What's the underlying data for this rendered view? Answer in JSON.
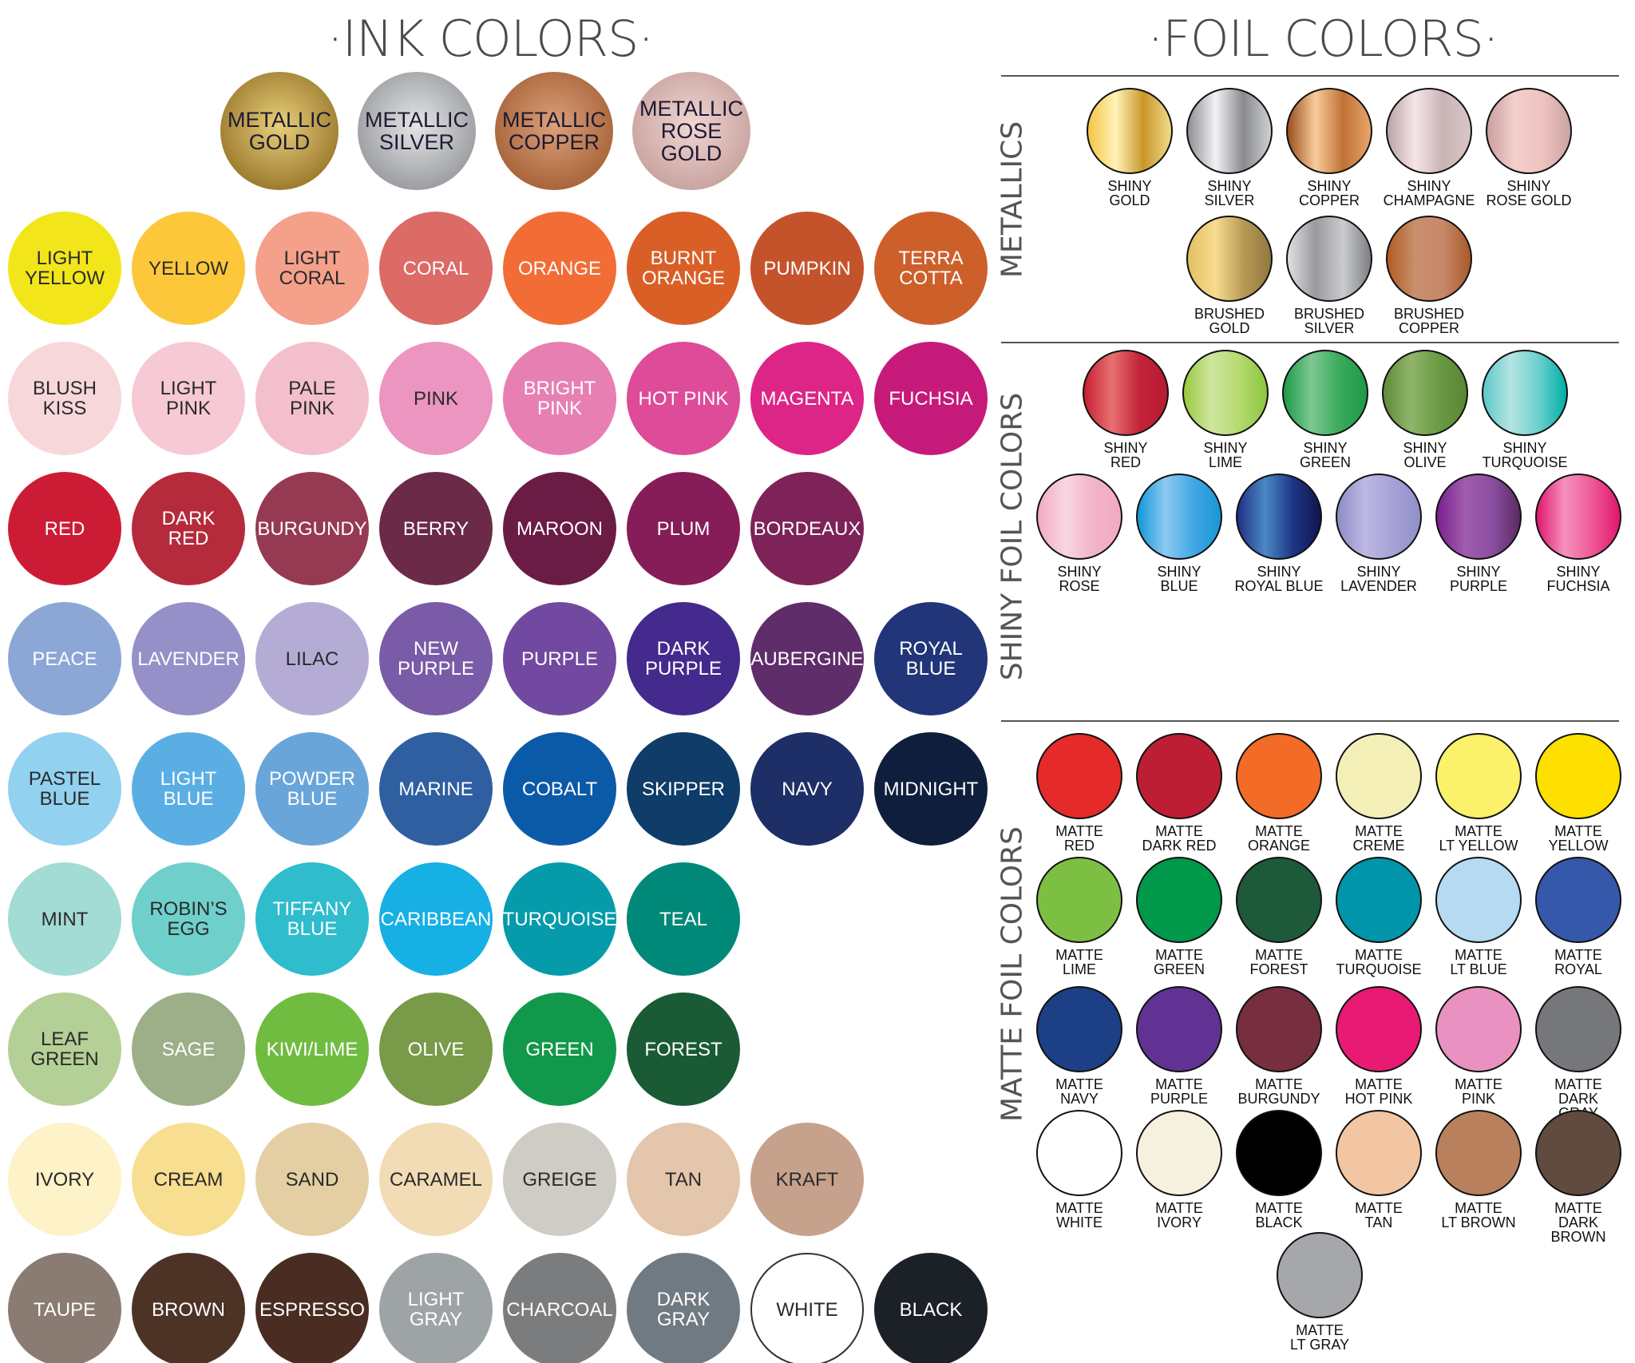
{
  "ink": {
    "title": "·INK COLORS·",
    "metallics": [
      {
        "label": "METALLIC\nGOLD",
        "colors": [
          "#9c7a2e",
          "#e8cf7a",
          "#b79245"
        ]
      },
      {
        "label": "METALLIC\nSILVER",
        "colors": [
          "#9a9ca0",
          "#e4e5e7",
          "#a7a9ad"
        ]
      },
      {
        "label": "METALLIC\nCOPPER",
        "colors": [
          "#a8643a",
          "#dca07a",
          "#b06b40"
        ]
      },
      {
        "label": "METALLIC\nROSE\nGOLD",
        "colors": [
          "#c9a3a0",
          "#f0d6d2",
          "#c79d9a"
        ]
      }
    ],
    "rows": [
      [
        {
          "label": "LIGHT\nYELLOW",
          "color": "#f2e61a"
        },
        {
          "label": "YELLOW",
          "color": "#fcc73a"
        },
        {
          "label": "LIGHT\nCORAL",
          "color": "#f4a08a"
        },
        {
          "label": "CORAL",
          "color": "#dc6a65"
        },
        {
          "label": "ORANGE",
          "color": "#f26c36"
        },
        {
          "label": "BURNT\nORANGE",
          "color": "#d95f27"
        },
        {
          "label": "PUMPKIN",
          "color": "#c4532c"
        },
        {
          "label": "TERRA\nCOTTA",
          "color": "#cd5f2a"
        }
      ],
      [
        {
          "label": "BLUSH\nKISS",
          "color": "#f8d7db"
        },
        {
          "label": "LIGHT\nPINK",
          "color": "#f7c9d4"
        },
        {
          "label": "PALE\nPINK",
          "color": "#f4bfcc"
        },
        {
          "label": "PINK",
          "color": "#eb95c0"
        },
        {
          "label": "BRIGHT\nPINK",
          "color": "#e77fb3"
        },
        {
          "label": "HOT PINK",
          "color": "#de4b98"
        },
        {
          "label": "MAGENTA",
          "color": "#dc2586"
        },
        {
          "label": "FUCHSIA",
          "color": "#c61a7a"
        }
      ],
      [
        {
          "label": "RED",
          "color": "#cc1c35"
        },
        {
          "label": "DARK\nRED",
          "color": "#b52b3b"
        },
        {
          "label": "BURGUNDY",
          "color": "#963a54"
        },
        {
          "label": "BERRY",
          "color": "#6b2a48"
        },
        {
          "label": "MAROON",
          "color": "#6a1c45"
        },
        {
          "label": "PLUM",
          "color": "#861d58"
        },
        {
          "label": "BORDEAUX",
          "color": "#7d2358"
        }
      ],
      [
        {
          "label": "PEACE",
          "color": "#8ca6d6"
        },
        {
          "label": "LAVENDER",
          "color": "#9590c8"
        },
        {
          "label": "LILAC",
          "color": "#b5acd6"
        },
        {
          "label": "NEW\nPURPLE",
          "color": "#7a5ba8"
        },
        {
          "label": "PURPLE",
          "color": "#7249a0"
        },
        {
          "label": "DARK\nPURPLE",
          "color": "#432a8c"
        },
        {
          "label": "AUBERGINE",
          "color": "#5f2d6a"
        },
        {
          "label": "ROYAL\nBLUE",
          "color": "#213578"
        }
      ],
      [
        {
          "label": "PASTEL\nBLUE",
          "color": "#92d1ef"
        },
        {
          "label": "LIGHT\nBLUE",
          "color": "#5aaee4"
        },
        {
          "label": "POWDER\nBLUE",
          "color": "#6aa5da"
        },
        {
          "label": "MARINE",
          "color": "#2f5fa0"
        },
        {
          "label": "COBALT",
          "color": "#0b5aa8"
        },
        {
          "label": "SKIPPER",
          "color": "#0f3c68"
        },
        {
          "label": "NAVY",
          "color": "#1e2e66"
        },
        {
          "label": "MIDNIGHT",
          "color": "#0f1e3d"
        }
      ],
      [
        {
          "label": "MINT",
          "color": "#a3dbd5"
        },
        {
          "label": "ROBIN’S\nEGG",
          "color": "#6fcfcb"
        },
        {
          "label": "TIFFANY\nBLUE",
          "color": "#2fbccd"
        },
        {
          "label": "CARIBBEAN",
          "color": "#17b0e4"
        },
        {
          "label": "TURQUOISE",
          "color": "#059bab"
        },
        {
          "label": "TEAL",
          "color": "#008878"
        }
      ],
      [
        {
          "label": "LEAF\nGREEN",
          "color": "#b5d096"
        },
        {
          "label": "SAGE",
          "color": "#9caf88"
        },
        {
          "label": "KIWI/LIME",
          "color": "#70bc40"
        },
        {
          "label": "OLIVE",
          "color": "#799a48"
        },
        {
          "label": "GREEN",
          "color": "#12984a"
        },
        {
          "label": "FOREST",
          "color": "#1a5a35"
        }
      ],
      [
        {
          "label": "IVORY",
          "color": "#fdf2c8"
        },
        {
          "label": "CREAM",
          "color": "#f8de90"
        },
        {
          "label": "SAND",
          "color": "#e4cfa4"
        },
        {
          "label": "CARAMEL",
          "color": "#f2dcb5"
        },
        {
          "label": "GREIGE",
          "color": "#cfccc5"
        },
        {
          "label": "TAN",
          "color": "#e3c6ab"
        },
        {
          "label": "KRAFT",
          "color": "#c6a28c"
        }
      ],
      [
        {
          "label": "TAUPE",
          "color": "#8a7c72"
        },
        {
          "label": "BROWN",
          "color": "#4d3326"
        },
        {
          "label": "ESPRESSO",
          "color": "#4a2d22"
        },
        {
          "label": "LIGHT\nGRAY",
          "color": "#9ea4a6"
        },
        {
          "label": "CHARCOAL",
          "color": "#7a7c7e"
        },
        {
          "label": "DARK\nGRAY",
          "color": "#707a82"
        },
        {
          "label": "WHITE",
          "color": "#ffffff"
        },
        {
          "label": "BLACK",
          "color": "#1c2128"
        }
      ]
    ]
  },
  "foil": {
    "title": "·FOIL COLORS·",
    "sections": [
      {
        "heading": "METALLICS",
        "rows": [
          [
            {
              "label": "SHINY\nGOLD",
              "colors": [
                "#f5c542",
                "#fff3b8",
                "#c9962a",
                "#f0dc8a"
              ]
            },
            {
              "label": "SHINY\nSILVER",
              "colors": [
                "#8d8e93",
                "#f2f2f4",
                "#8a8b90",
                "#cfd0d3"
              ]
            },
            {
              "label": "SHINY\nCOPPER",
              "colors": [
                "#9a4f1e",
                "#f7cc9a",
                "#c07234",
                "#e9a56b"
              ]
            },
            {
              "label": "SHINY\nCHAMPAGNE",
              "colors": [
                "#b8a3a8",
                "#f6e5e6",
                "#c9b4b6",
                "#d9c5c6"
              ]
            },
            {
              "label": "SHINY\nROSE GOLD",
              "colors": [
                "#c9a0a0",
                "#f3cfcb",
                "#eec3bf",
                "#caa3a3"
              ]
            }
          ],
          [
            {
              "label": "BRUSHED\nGOLD",
              "colors": [
                "#e2bf63",
                "#f7dc8e",
                "#b99a54",
                "#8f7840"
              ]
            },
            {
              "label": "BRUSHED\nSILVER",
              "colors": [
                "#e0e0e2",
                "#9a9a9e",
                "#c9cbcd",
                "#7e7f84"
              ]
            },
            {
              "label": "BRUSHED\nCOPPER",
              "colors": [
                "#b35c22",
                "#c98f6e",
                "#c7886a",
                "#a85a2a"
              ]
            }
          ]
        ]
      },
      {
        "heading": "SHINY FOIL COLORS",
        "rows": [
          [
            {
              "label": "SHINY\nRED",
              "colors": [
                "#c41f32",
                "#e87070",
                "#c4233a",
                "#b81a30"
              ]
            },
            {
              "label": "SHINY\nLIME",
              "colors": [
                "#98c93c",
                "#cfe6a0",
                "#b5da6e",
                "#8cc63f"
              ]
            },
            {
              "label": "SHINY\nGREEN",
              "colors": [
                "#1e9a48",
                "#7cc891",
                "#3aab5a",
                "#1e9a48"
              ]
            },
            {
              "label": "SHINY\nOLIVE",
              "colors": [
                "#5f8b3a",
                "#8fb56a",
                "#6a9a42",
                "#5a8636"
              ]
            },
            {
              "label": "SHINY\nTURQUOISE",
              "colors": [
                "#5cc8c8",
                "#b4e4e2",
                "#6cd0cc",
                "#00aea8"
              ]
            }
          ],
          [
            {
              "label": "SHINY\nROSE",
              "colors": [
                "#f3a9c2",
                "#f9d6e2",
                "#f1b4c8",
                "#f3a9c2"
              ]
            },
            {
              "label": "SHINY\nBLUE",
              "colors": [
                "#1296d8",
                "#8ccaf0",
                "#42a8e4",
                "#1896d6"
              ]
            },
            {
              "label": "SHINY\nROYAL BLUE",
              "colors": [
                "#1f2f85",
                "#4a88c4",
                "#1f3686",
                "#0f1550"
              ]
            },
            {
              "label": "SHINY\nLAVENDER",
              "colors": [
                "#8c8cc6",
                "#bdb8e2",
                "#a6a2d6",
                "#8f8fca"
              ]
            },
            {
              "label": "SHINY\nPURPLE",
              "colors": [
                "#7a1f8e",
                "#a05cae",
                "#8a4ea0",
                "#5c2a60"
              ]
            },
            {
              "label": "SHINY\nFUCHSIA",
              "colors": [
                "#e0166e",
                "#f590be",
                "#ee5a96",
                "#e0166e"
              ]
            }
          ]
        ]
      },
      {
        "heading": "MATTE FOIL COLORS",
        "rows": [
          [
            {
              "label": "MATTE\nRED",
              "color": "#e52a2a"
            },
            {
              "label": "MATTE\nDARK RED",
              "color": "#be1e34"
            },
            {
              "label": "MATTE\nORANGE",
              "color": "#f26b27"
            },
            {
              "label": "MATTE\nCREME",
              "color": "#f4efb6"
            },
            {
              "label": "MATTE\nLT YELLOW",
              "color": "#fbf16a"
            },
            {
              "label": "MATTE\nYELLOW",
              "color": "#fee000"
            }
          ],
          [
            {
              "label": "MATTE\nLIME",
              "color": "#7dbf42"
            },
            {
              "label": "MATTE\nGREEN",
              "color": "#00984a"
            },
            {
              "label": "MATTE\nFOREST",
              "color": "#1e5a3a"
            },
            {
              "label": "MATTE\nTURQUOISE",
              "color": "#0095aa"
            },
            {
              "label": "MATTE\nLT BLUE",
              "color": "#b5daf2"
            },
            {
              "label": "MATTE\nROYAL",
              "color": "#3558aa"
            }
          ],
          [
            {
              "label": "MATTE\nNAVY",
              "color": "#1c3f85"
            },
            {
              "label": "MATTE\nPURPLE",
              "color": "#613294"
            },
            {
              "label": "MATTE\nBURGUNDY",
              "color": "#772e3e"
            },
            {
              "label": "MATTE\nHOT PINK",
              "color": "#e81a74"
            },
            {
              "label": "MATTE\nPINK",
              "color": "#e991c0"
            },
            {
              "label": "MATTE\nDARK GRAY",
              "color": "#76777b"
            }
          ],
          [
            {
              "label": "MATTE\nWHITE",
              "color": "#ffffff"
            },
            {
              "label": "MATTE\nIVORY",
              "color": "#f6f0de"
            },
            {
              "label": "MATTE\nBLACK",
              "color": "#000000"
            },
            {
              "label": "MATTE\nTAN",
              "color": "#f2c6a2"
            },
            {
              "label": "MATTE\nLT BROWN",
              "color": "#b8805c"
            },
            {
              "label": "MATTE\nDARK BROWN",
              "color": "#614b3e"
            }
          ],
          [
            {
              "label": "MATTE\nLT GRAY",
              "color": "#a5a7aa"
            }
          ]
        ]
      }
    ]
  }
}
